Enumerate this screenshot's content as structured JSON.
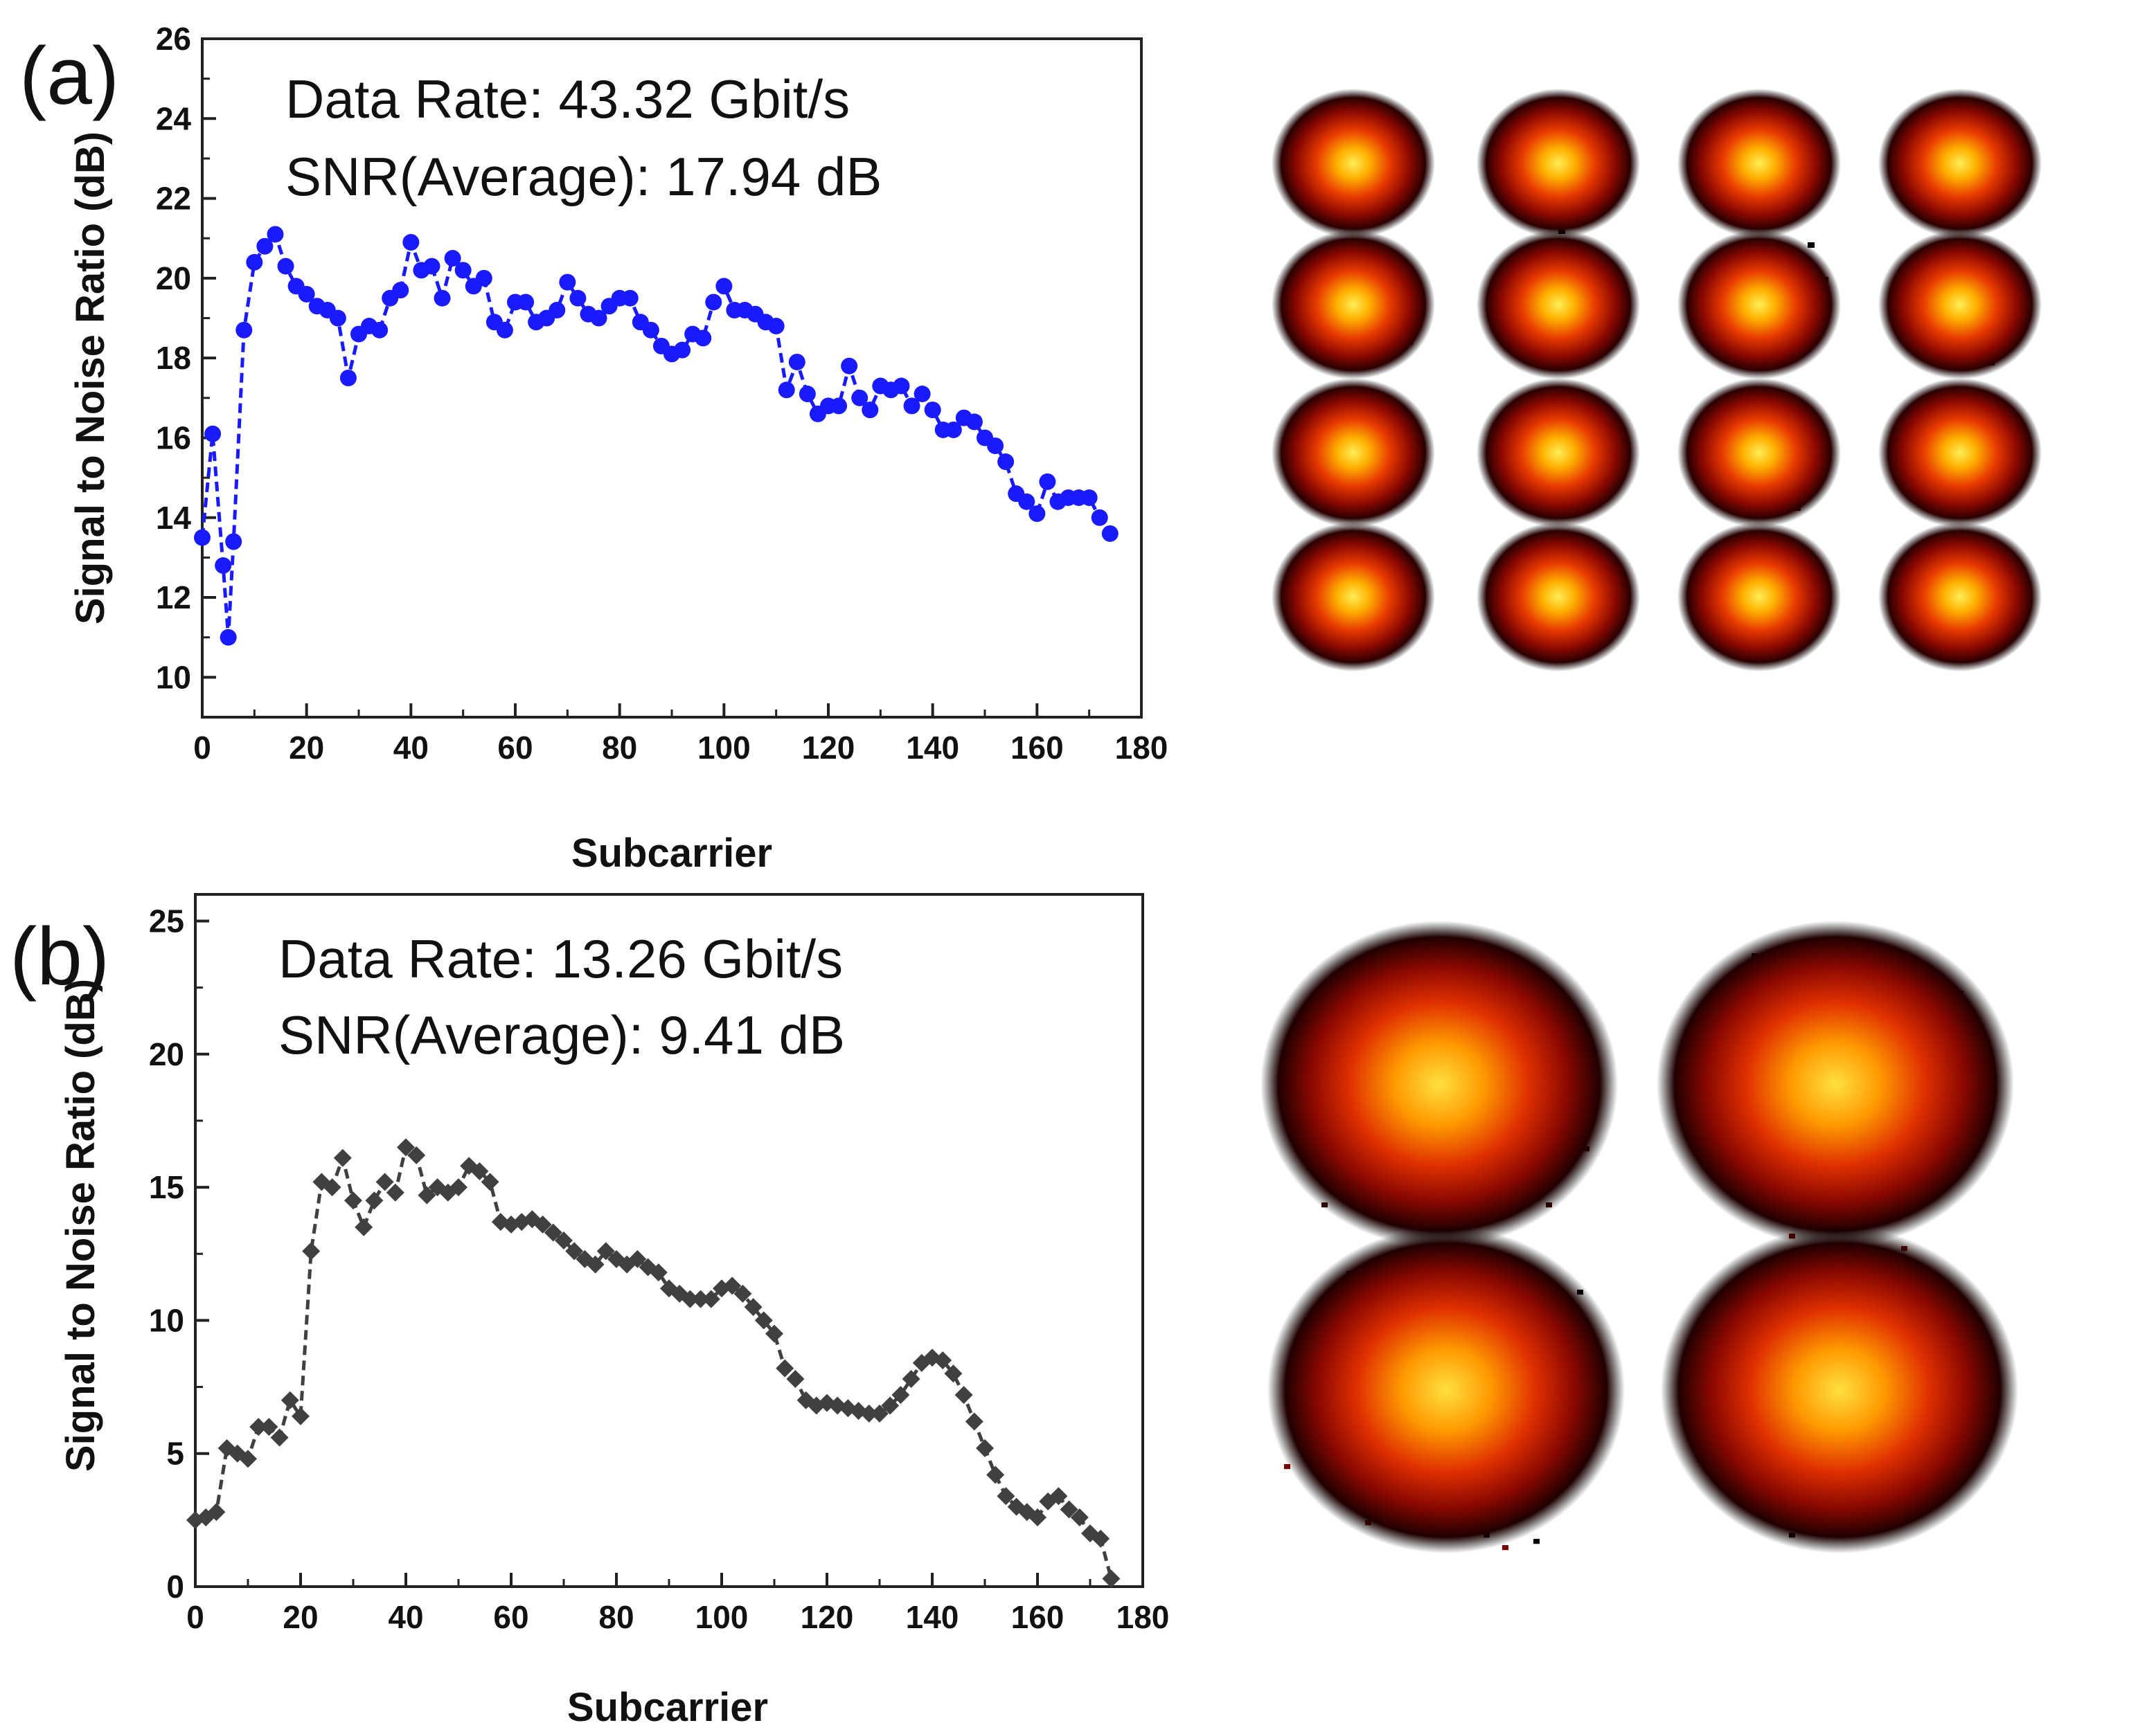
{
  "chart_data": [
    {
      "type": "scatter",
      "panel_label": "(a)",
      "xlabel": "Subcarrier",
      "ylabel": "Signal to Noise Ratio (dB)",
      "xlim": [
        0,
        180
      ],
      "ylim": [
        9,
        26
      ],
      "xticks": [
        0,
        20,
        40,
        60,
        80,
        100,
        120,
        140,
        160,
        180
      ],
      "yticks": [
        10,
        12,
        14,
        16,
        18,
        20,
        22,
        24,
        26
      ],
      "annotations": [
        "Data Rate: 43.32 Gbit/s",
        "SNR(Average): 17.94 dB"
      ],
      "marker": "circle",
      "color": "#1a1aff",
      "series": [
        {
          "name": "SNR",
          "x": [
            0,
            2,
            4,
            5,
            6,
            8,
            10,
            12,
            14,
            16,
            18,
            20,
            22,
            24,
            26,
            28,
            30,
            32,
            34,
            36,
            38,
            40,
            42,
            44,
            46,
            48,
            50,
            52,
            54,
            56,
            58,
            60,
            62,
            64,
            66,
            68,
            70,
            72,
            74,
            76,
            78,
            80,
            82,
            84,
            86,
            88,
            90,
            92,
            94,
            96,
            98,
            100,
            102,
            104,
            106,
            108,
            110,
            112,
            114,
            116,
            118,
            120,
            122,
            124,
            126,
            128,
            130,
            132,
            134,
            136,
            138,
            140,
            142,
            144,
            146,
            148,
            150,
            152,
            154,
            156,
            158,
            160,
            162,
            164,
            166,
            168,
            170,
            172,
            174
          ],
          "values": [
            13.5,
            16.1,
            12.8,
            11.0,
            13.4,
            18.7,
            20.4,
            20.8,
            21.1,
            20.3,
            19.8,
            19.6,
            19.3,
            19.2,
            19.0,
            17.5,
            18.6,
            18.8,
            18.7,
            19.5,
            19.7,
            20.9,
            20.2,
            20.3,
            19.5,
            20.5,
            20.2,
            19.8,
            20.0,
            18.9,
            18.7,
            19.4,
            19.4,
            18.9,
            19.0,
            19.2,
            19.9,
            19.5,
            19.1,
            19.0,
            19.3,
            19.5,
            19.5,
            18.9,
            18.7,
            18.3,
            18.1,
            18.2,
            18.6,
            18.5,
            19.4,
            19.8,
            19.2,
            19.2,
            19.1,
            18.9,
            18.8,
            17.2,
            17.9,
            17.1,
            16.6,
            16.8,
            16.8,
            17.8,
            17.0,
            16.7,
            17.3,
            17.2,
            17.3,
            16.8,
            17.1,
            16.7,
            16.2,
            16.2,
            16.5,
            16.4,
            16.0,
            15.8,
            15.4,
            14.6,
            14.4,
            14.1,
            14.9,
            14.4,
            14.5,
            14.5,
            14.5,
            14.0,
            13.6
          ]
        }
      ]
    },
    {
      "type": "scatter",
      "panel_label": "(b)",
      "xlabel": "Subcarrier",
      "ylabel": "Signal to Noise Ratio (dB)",
      "xlim": [
        0,
        180
      ],
      "ylim": [
        0,
        26
      ],
      "xticks": [
        0,
        20,
        40,
        60,
        80,
        100,
        120,
        140,
        160,
        180
      ],
      "yticks": [
        0,
        5,
        10,
        15,
        20,
        25
      ],
      "annotations": [
        "Data Rate: 13.26 Gbit/s",
        "SNR(Average): 9.41 dB"
      ],
      "marker": "diamond",
      "color": "#404040",
      "series": [
        {
          "name": "SNR",
          "x": [
            0,
            2,
            4,
            6,
            8,
            10,
            12,
            14,
            16,
            18,
            20,
            22,
            24,
            26,
            28,
            30,
            32,
            34,
            36,
            38,
            40,
            42,
            44,
            46,
            48,
            50,
            52,
            54,
            56,
            58,
            60,
            62,
            64,
            66,
            68,
            70,
            72,
            74,
            76,
            78,
            80,
            82,
            84,
            86,
            88,
            90,
            92,
            94,
            96,
            98,
            100,
            102,
            104,
            106,
            108,
            110,
            112,
            114,
            116,
            118,
            120,
            122,
            124,
            126,
            128,
            130,
            132,
            134,
            136,
            138,
            140,
            142,
            144,
            146,
            148,
            150,
            152,
            154,
            156,
            158,
            160,
            162,
            164,
            166,
            168,
            170,
            172,
            174
          ],
          "values": [
            2.5,
            2.6,
            2.8,
            5.2,
            5.0,
            4.8,
            6.0,
            6.0,
            5.6,
            7.0,
            6.4,
            12.6,
            15.2,
            15.0,
            16.1,
            14.5,
            13.5,
            14.5,
            15.2,
            14.8,
            16.5,
            16.2,
            14.7,
            15.0,
            14.8,
            15.0,
            15.8,
            15.6,
            15.2,
            13.7,
            13.6,
            13.7,
            13.8,
            13.6,
            13.3,
            13.0,
            12.6,
            12.3,
            12.1,
            12.6,
            12.3,
            12.1,
            12.3,
            12.0,
            11.8,
            11.2,
            11.0,
            10.8,
            10.8,
            10.8,
            11.2,
            11.3,
            11.0,
            10.5,
            10.0,
            9.5,
            8.2,
            7.8,
            7.0,
            6.8,
            6.9,
            6.8,
            6.7,
            6.6,
            6.5,
            6.5,
            6.8,
            7.2,
            7.8,
            8.4,
            8.6,
            8.5,
            8.0,
            7.2,
            6.2,
            5.2,
            4.2,
            3.4,
            3.0,
            2.8,
            2.6,
            3.2,
            3.4,
            2.9,
            2.6,
            2.0,
            1.8,
            0.3
          ]
        }
      ]
    }
  ]
}
